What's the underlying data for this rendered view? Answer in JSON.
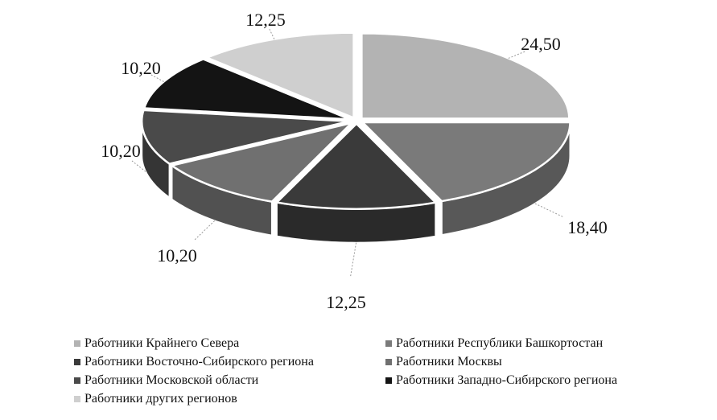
{
  "chart_data": {
    "type": "pie",
    "title": "",
    "legend_position": "bottom",
    "slices": [
      {
        "label": "Работники Крайнего Севера",
        "value": 24.5,
        "value_label": "24,50",
        "color": "#b3b3b3"
      },
      {
        "label": "Работники Республики Башкортостан",
        "value": 18.4,
        "value_label": "18,40",
        "color": "#7a7a7a"
      },
      {
        "label": "Работники Восточно-Сибирского региона",
        "value": 12.25,
        "value_label": "12,25",
        "color": "#3a3a3a"
      },
      {
        "label": "Работники Москвы",
        "value": 10.2,
        "value_label": "10,20",
        "color": "#707070"
      },
      {
        "label": "Работники Московской области",
        "value": 10.2,
        "value_label": "10,20",
        "color": "#4a4a4a"
      },
      {
        "label": "Работники Западно-Сибирского региона",
        "value": 10.2,
        "value_label": "10,20",
        "color": "#141414"
      },
      {
        "label": "Работники других регионов",
        "value": 12.25,
        "value_label": "12,25",
        "color": "#cfcfcf"
      }
    ]
  }
}
